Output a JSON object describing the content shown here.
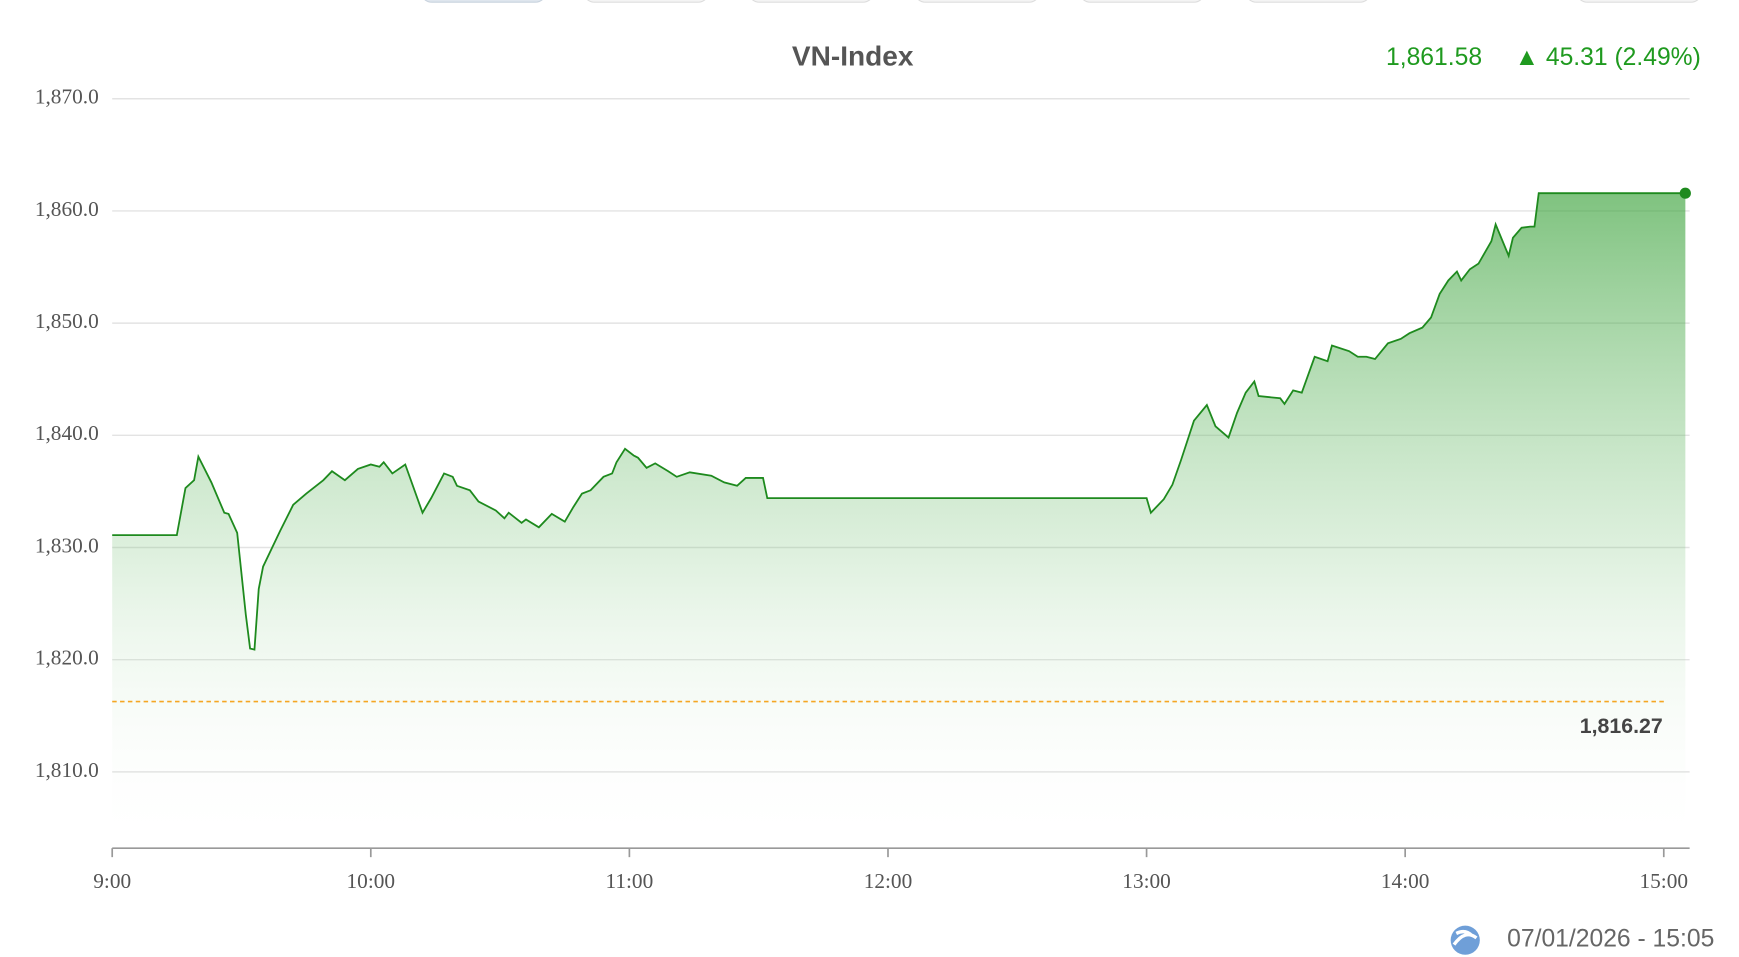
{
  "chart_data": {
    "type": "line",
    "title": "VN-Index",
    "price": "1,861.58",
    "change": "▲ 45.31 (2.49%)",
    "timestamp": "07/01/2026 - 15:05",
    "color": "#1e8a1e",
    "area": true,
    "grid": true,
    "reference": {
      "value": 1816.27,
      "label": "1,816.27",
      "color": "#f5a623"
    },
    "x": [
      "9:00",
      "9:15",
      "9:17",
      "9:19",
      "9:20",
      "9:23",
      "9:26",
      "9:27",
      "9:29",
      "9:31",
      "9:32",
      "9:33",
      "9:34",
      "9:35",
      "9:39",
      "9:42",
      "9:45",
      "9:49",
      "9:51",
      "9:54",
      "9:57",
      "10:00",
      "10:02",
      "10:03",
      "10:05",
      "10:08",
      "10:12",
      "10:14",
      "10:17",
      "10:19",
      "10:20",
      "10:23",
      "10:25",
      "10:29",
      "10:31",
      "10:32",
      "10:35",
      "10:36",
      "10:39",
      "10:42",
      "10:45",
      "10:47",
      "10:49",
      "10:51",
      "10:54",
      "10:56",
      "10:57",
      "10:59",
      "11:01",
      "11:02",
      "11:04",
      "11:06",
      "11:09",
      "11:11",
      "11:14",
      "11:19",
      "11:22",
      "11:25",
      "11:27",
      "11:31",
      "11:32",
      "13:00",
      "13:01",
      "13:04",
      "13:06",
      "13:08",
      "13:11",
      "13:14",
      "13:16",
      "13:19",
      "13:21",
      "13:23",
      "13:25",
      "13:26",
      "13:31",
      "13:32",
      "13:34",
      "13:36",
      "13:39",
      "13:42",
      "13:43",
      "13:47",
      "13:49",
      "13:51",
      "13:53",
      "13:56",
      "13:59",
      "14:01",
      "14:04",
      "14:06",
      "14:08",
      "14:10",
      "14:12",
      "14:13",
      "14:15",
      "14:17",
      "14:20",
      "14:21",
      "14:24",
      "14:25",
      "14:27",
      "14:29",
      "14:30",
      "14:31",
      "15:05"
    ],
    "values": [
      1831.1,
      1831.1,
      1835.3,
      1836.0,
      1838.1,
      1835.8,
      1833.1,
      1833.0,
      1831.3,
      1824.0,
      1821.0,
      1820.9,
      1826.3,
      1828.3,
      1831.5,
      1833.8,
      1834.8,
      1836.0,
      1836.8,
      1836.0,
      1837.0,
      1837.4,
      1837.2,
      1837.6,
      1836.6,
      1837.4,
      1833.1,
      1834.4,
      1836.6,
      1836.3,
      1835.5,
      1835.1,
      1834.1,
      1833.3,
      1832.6,
      1833.1,
      1832.2,
      1832.5,
      1831.8,
      1833.0,
      1832.3,
      1833.6,
      1834.8,
      1835.1,
      1836.3,
      1836.6,
      1837.6,
      1838.8,
      1838.2,
      1838.0,
      1837.1,
      1837.5,
      1836.8,
      1836.3,
      1836.7,
      1836.4,
      1835.8,
      1835.5,
      1836.2,
      1836.2,
      1834.4,
      1834.4,
      1833.1,
      1834.3,
      1835.6,
      1837.8,
      1841.3,
      1842.7,
      1840.8,
      1839.8,
      1842.0,
      1843.8,
      1844.8,
      1843.5,
      1843.3,
      1842.8,
      1844.0,
      1843.8,
      1847.0,
      1846.6,
      1848.0,
      1847.5,
      1847.0,
      1847.0,
      1846.8,
      1848.2,
      1848.6,
      1849.1,
      1849.6,
      1850.5,
      1852.6,
      1853.8,
      1854.6,
      1853.8,
      1854.8,
      1855.3,
      1857.3,
      1858.8,
      1856.0,
      1857.6,
      1858.5,
      1858.6,
      1858.6,
      1861.58,
      1861.58
    ],
    "xlim": [
      "9:00",
      "15:06"
    ],
    "xticks": [
      "9:00",
      "10:00",
      "11:00",
      "12:00",
      "13:00",
      "14:00",
      "15:00"
    ],
    "ylim": [
      1803.2,
      1870
    ],
    "yticks": [
      {
        "value": 1810,
        "label": "1,810.0"
      },
      {
        "value": 1820,
        "label": "1,820.0"
      },
      {
        "value": 1830,
        "label": "1,830.0"
      },
      {
        "value": 1840,
        "label": "1,840.0"
      },
      {
        "value": 1850,
        "label": "1,850.0"
      },
      {
        "value": 1860,
        "label": "1,860.0"
      },
      {
        "value": 1870,
        "label": "1,870.0"
      }
    ]
  }
}
